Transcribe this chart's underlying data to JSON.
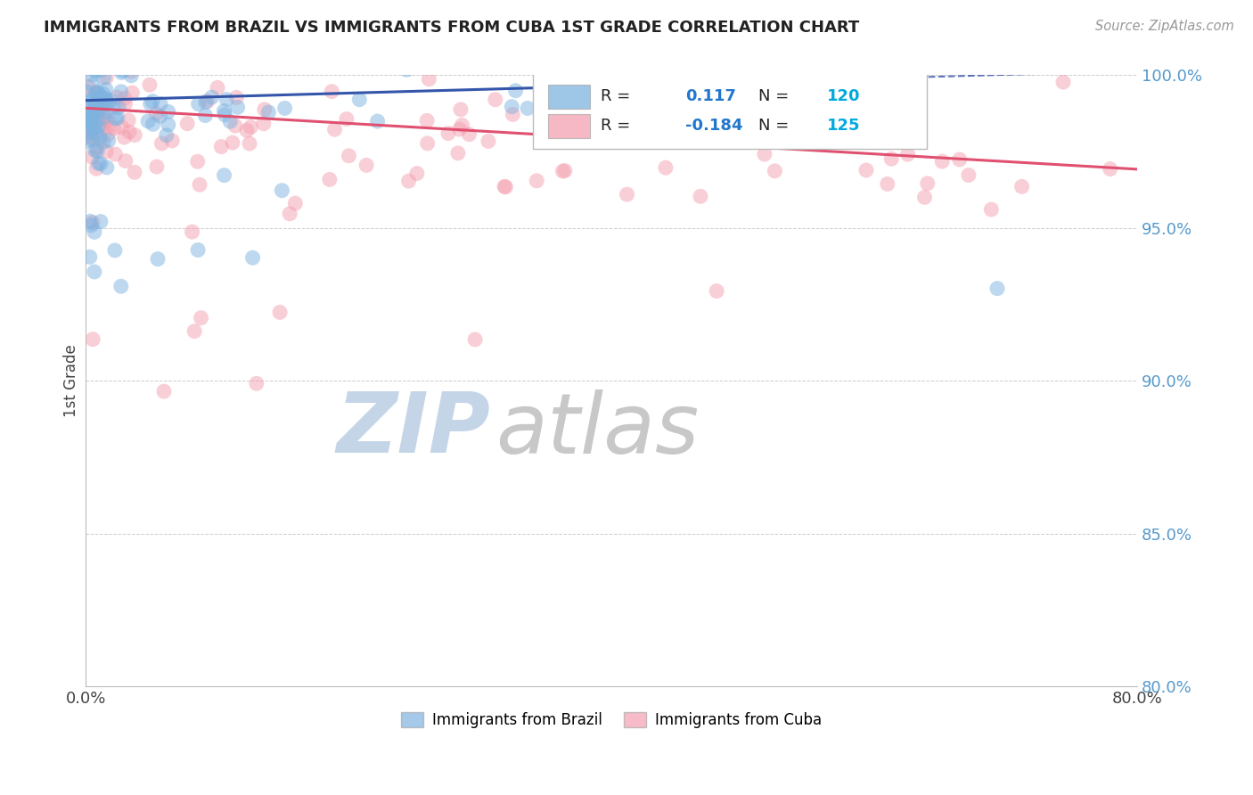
{
  "title": "IMMIGRANTS FROM BRAZIL VS IMMIGRANTS FROM CUBA 1ST GRADE CORRELATION CHART",
  "source_text": "Source: ZipAtlas.com",
  "ylabel": "1st Grade",
  "xlim": [
    0.0,
    80.0
  ],
  "ylim": [
    80.0,
    100.0
  ],
  "brazil_R": 0.117,
  "brazil_N": 120,
  "cuba_R": -0.184,
  "cuba_N": 125,
  "brazil_color": "#7EB3E0",
  "cuba_color": "#F4A0B0",
  "brazil_trend_color": "#3355AA",
  "cuba_trend_color": "#E05070",
  "watermark_zip_color": "#C5D5E8",
  "watermark_atlas_color": "#C8C8C8",
  "legend_label_color": "#222222",
  "legend_R_value_color": "#2277CC",
  "legend_N_value_color": "#00AADD",
  "ytick_color": "#5599CC",
  "background_color": "#FFFFFF",
  "grid_color": "#CCCCCC",
  "title_color": "#222222",
  "source_color": "#999999"
}
